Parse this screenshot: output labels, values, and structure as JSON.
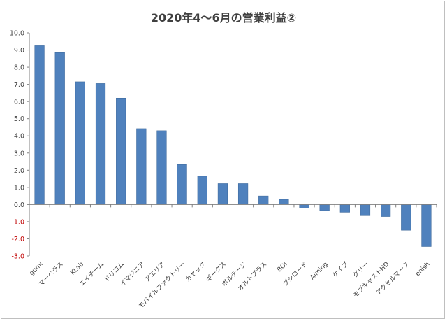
{
  "chart_data": {
    "type": "bar",
    "title": "2020年4〜6月の営業利益②",
    "xlabel": "",
    "ylabel": "",
    "ylim": [
      -3.0,
      10.0
    ],
    "ytick_step": 1.0,
    "grid": false,
    "legend": "none",
    "categories": [
      "gumi",
      "マーベラス",
      "KLab",
      "エイチーム",
      "ドリコム",
      "イマジニア",
      "アエリア",
      "モバイルファクトリー",
      "カヤック",
      "ギークス",
      "ボルテージ",
      "オルトプラス",
      "BOI",
      "ブシロード",
      "Aiming",
      "ケイブ",
      "グリー",
      "モブキャストHD",
      "アクセルマーク",
      "enish"
    ],
    "values": [
      9.25,
      8.85,
      7.15,
      7.05,
      6.2,
      4.42,
      4.3,
      2.33,
      1.65,
      1.22,
      1.22,
      0.5,
      0.3,
      -0.2,
      -0.35,
      -0.45,
      -0.65,
      -0.7,
      -1.5,
      -2.45
    ],
    "colors": {
      "bar": "#4f81bd",
      "bar_edge": "#3a6597",
      "positive_tick": "#404040",
      "negative_tick": "#c00000",
      "axis": "#808080"
    }
  }
}
